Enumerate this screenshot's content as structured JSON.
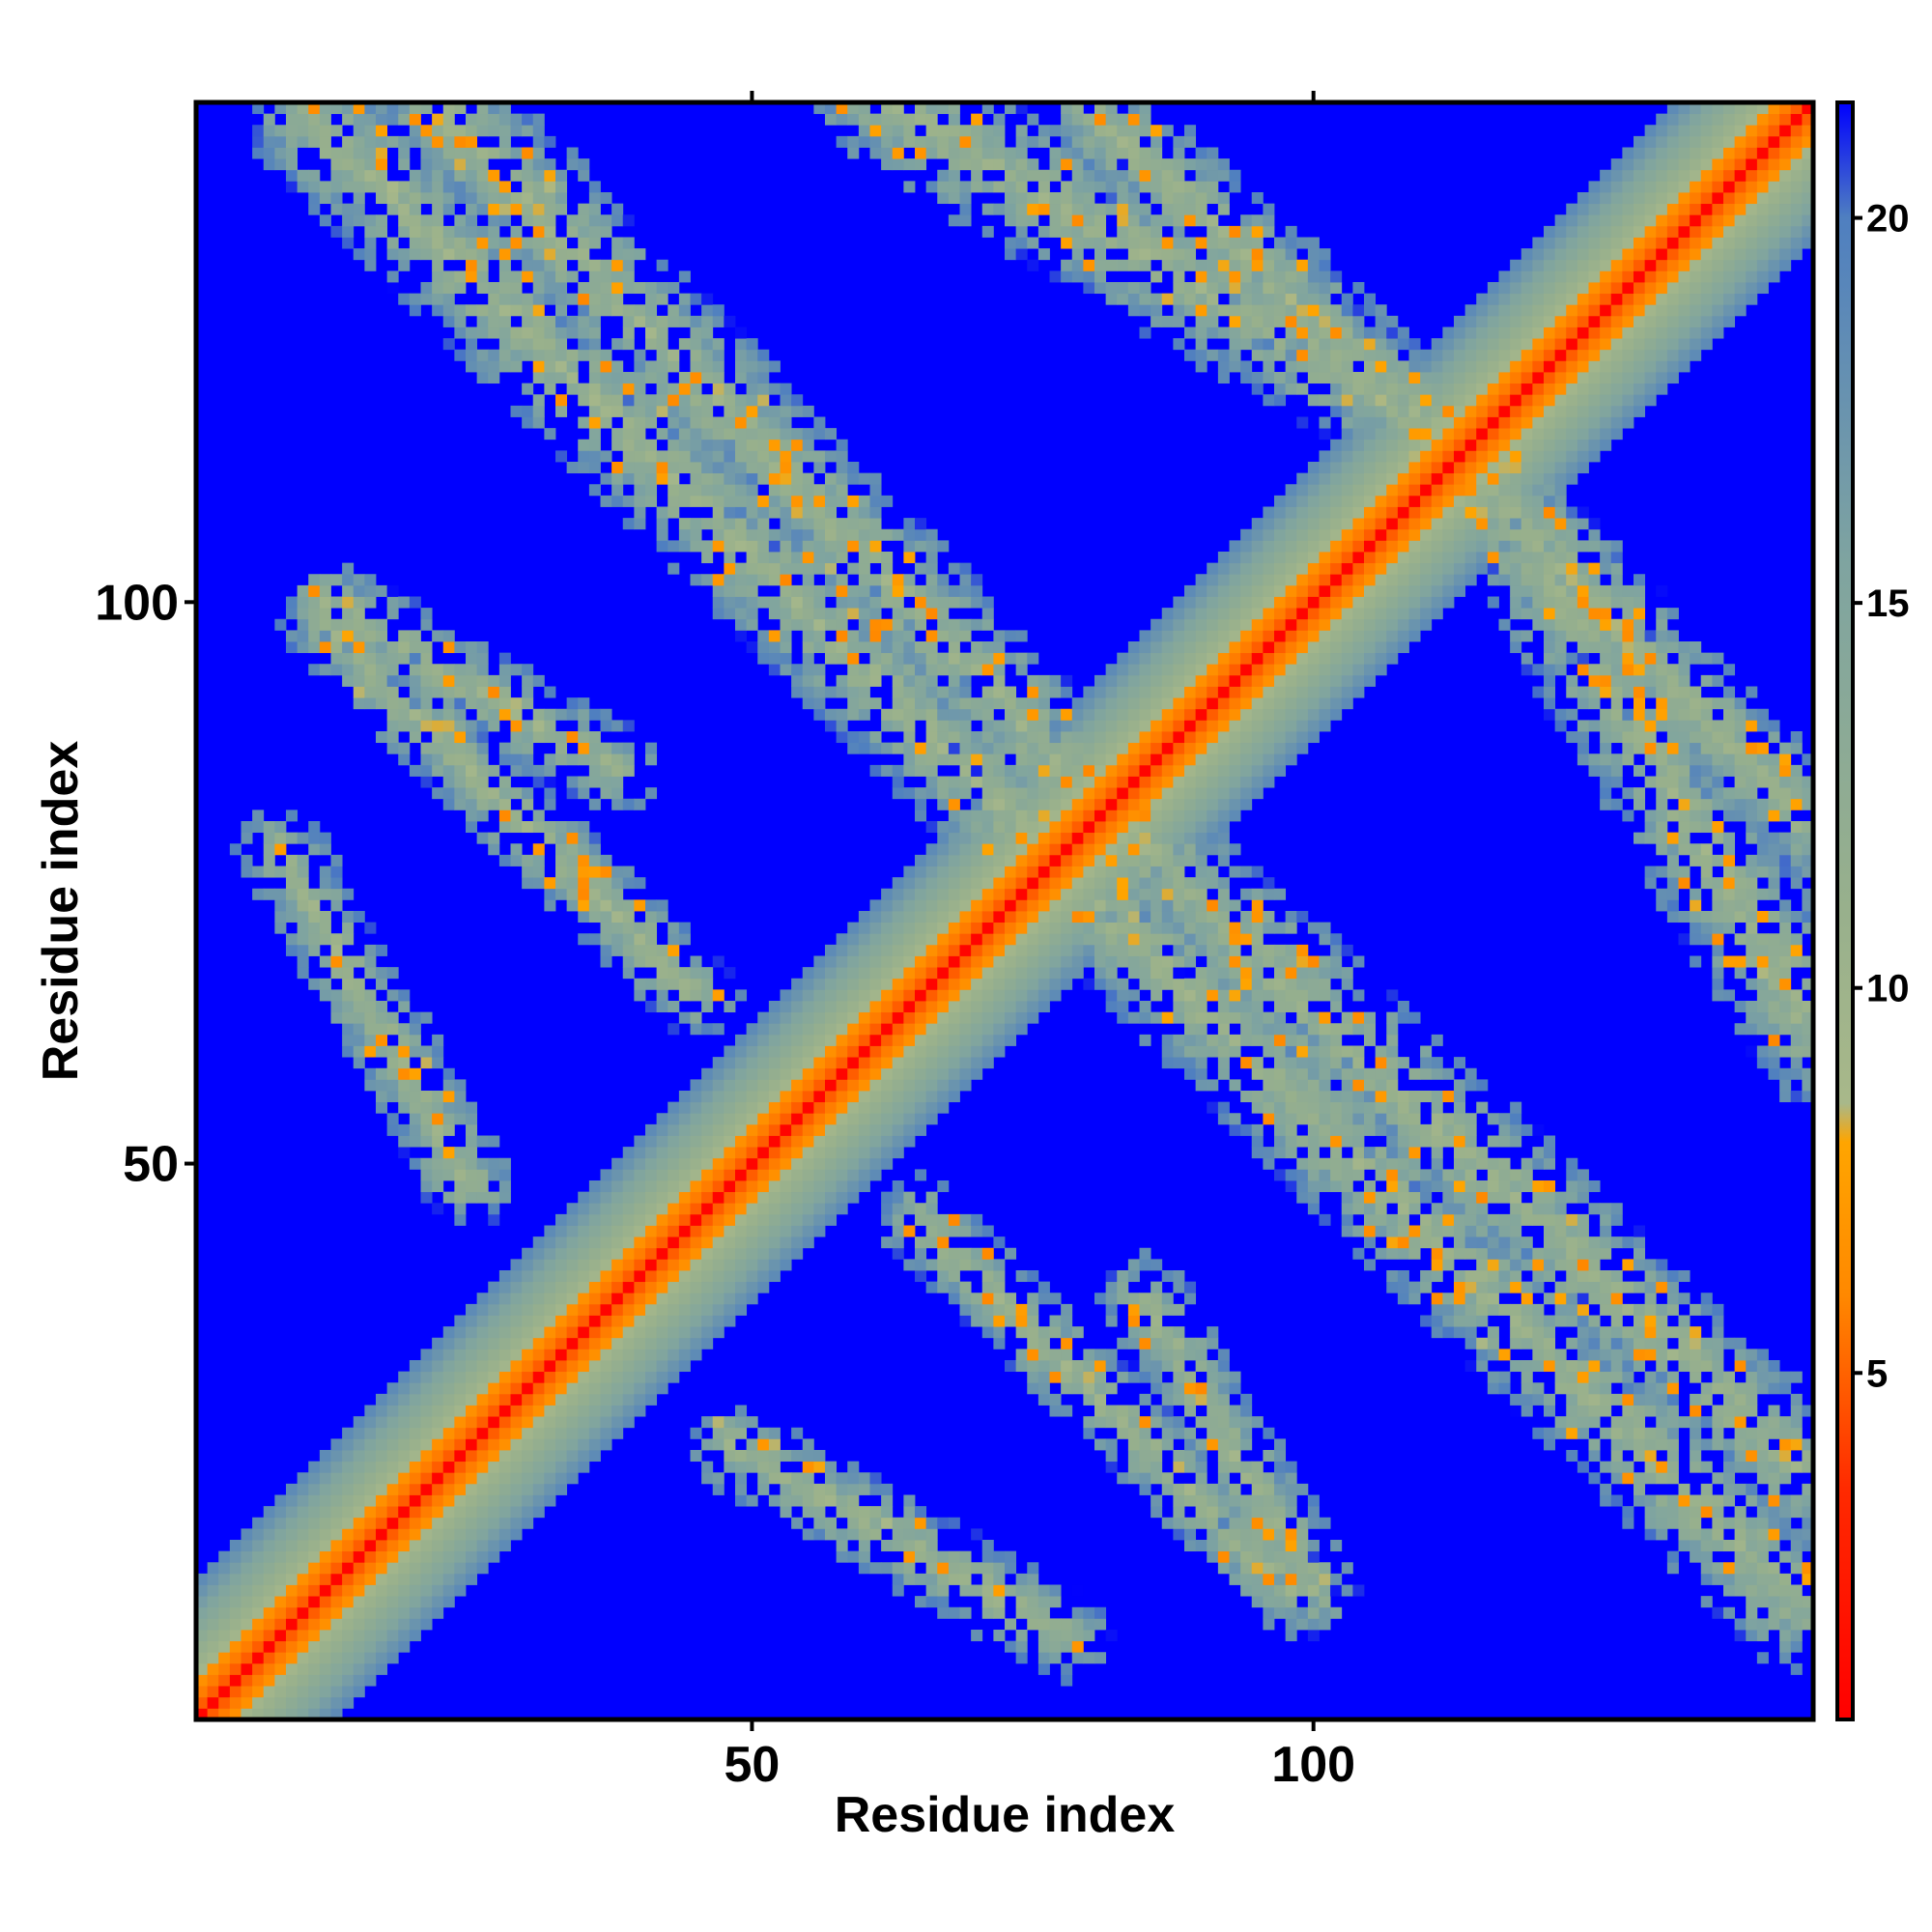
{
  "chart_data": {
    "type": "heatmap",
    "title": "",
    "xlabel": "Residue index",
    "ylabel": "Residue index",
    "n_residues": 144,
    "x_ticks": [
      50,
      100
    ],
    "y_ticks": [
      50,
      100
    ],
    "colorbar": {
      "ticks": [
        5,
        10,
        15,
        20
      ],
      "range": [
        0.5,
        21.5
      ],
      "stops": [
        {
          "value": 0.5,
          "color": "#ff0000"
        },
        {
          "value": 3.5,
          "color": "#ff2a00"
        },
        {
          "value": 6.0,
          "color": "#ff8800"
        },
        {
          "value": 8.0,
          "color": "#ffa500"
        },
        {
          "value": 8.5,
          "color": "#a8b88a"
        },
        {
          "value": 11.0,
          "color": "#98b08c"
        },
        {
          "value": 15.5,
          "color": "#7fa4a0"
        },
        {
          "value": 20.0,
          "color": "#4f7fc0"
        },
        {
          "value": 21.5,
          "color": "#0000ff"
        }
      ]
    },
    "background_value": 21.5,
    "bands": [
      {
        "name": "diagonal",
        "from": [
          1,
          1
        ],
        "to": [
          144,
          144
        ],
        "core": 0.6,
        "halo": 9
      },
      {
        "from": [
          11,
          143
        ],
        "to": [
          78,
          76
        ],
        "halo": 6
      },
      {
        "from": [
          61,
          145
        ],
        "to": [
          112,
          115
        ],
        "halo": 6
      },
      {
        "from": [
          111,
          115
        ],
        "to": [
          144,
          80
        ],
        "halo": 5
      },
      {
        "from": [
          83,
          80
        ],
        "to": [
          144,
          22
        ],
        "halo": 6
      },
      {
        "from": [
          48,
          25
        ],
        "to": [
          78,
          8
        ],
        "halo": 4
      },
      {
        "from": [
          85,
          38
        ],
        "to": [
          100,
          12
        ],
        "halo": 4
      },
      {
        "from": [
          12,
          98
        ],
        "to": [
          45,
          65
        ],
        "halo": 4
      }
    ]
  }
}
